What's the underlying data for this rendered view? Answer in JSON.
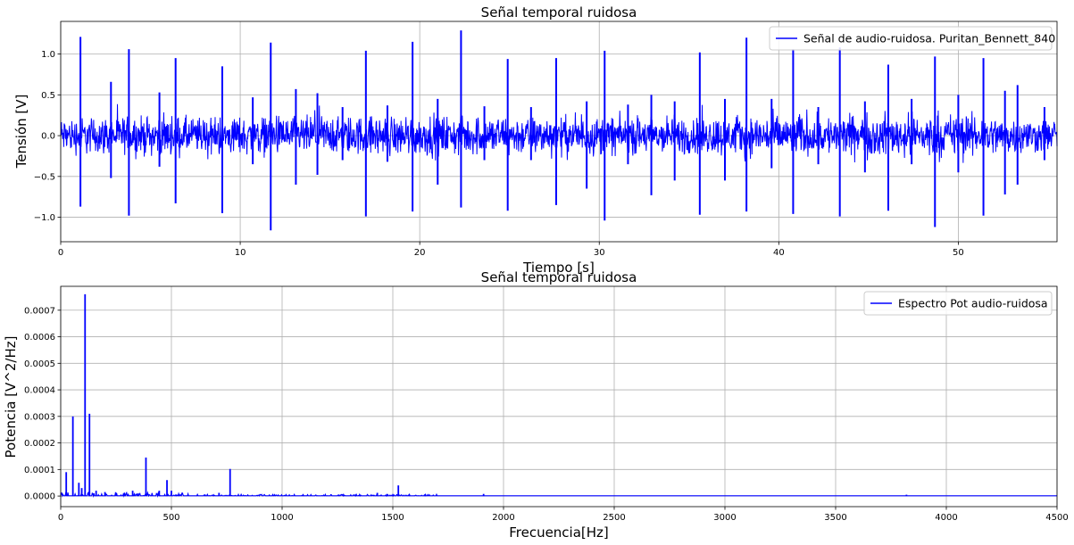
{
  "chart_data": [
    {
      "type": "line",
      "title": "Señal temporal ruidosa",
      "xlabel": "Tiempo [s]",
      "ylabel": "Tensión [V]",
      "xlim": [
        0,
        55.5
      ],
      "ylim": [
        -1.3,
        1.4
      ],
      "xticks": [
        0,
        10,
        20,
        30,
        40,
        50
      ],
      "xtick_labels": [
        "0",
        "10",
        "20",
        "30",
        "40",
        "50"
      ],
      "yticks": [
        -1.0,
        -0.5,
        0.0,
        0.5,
        1.0
      ],
      "ytick_labels": [
        "−1.0",
        "−0.5",
        "0.0",
        "0.5",
        "1.0"
      ],
      "grid": true,
      "legend_position": "top-right",
      "series": [
        {
          "name": "Señal de audio-ruidosa. Puritan_Bennett_840",
          "color": "#0000ff",
          "noise_envelope": {
            "x": [
              0,
              10,
              20,
              30,
              40,
              50,
              55.5
            ],
            "amplitude": [
              0.32,
              0.33,
              0.35,
              0.33,
              0.35,
              0.38,
              0.28
            ]
          },
          "spikes": [
            {
              "x": 1.1,
              "max": 1.21,
              "min": -0.87
            },
            {
              "x": 2.8,
              "max": 0.66,
              "min": -0.52
            },
            {
              "x": 3.8,
              "max": 1.06,
              "min": -0.98
            },
            {
              "x": 5.5,
              "max": 0.53,
              "min": -0.38
            },
            {
              "x": 6.4,
              "max": 0.95,
              "min": -0.83
            },
            {
              "x": 9.0,
              "max": 0.85,
              "min": -0.95
            },
            {
              "x": 10.7,
              "max": 0.47,
              "min": -0.35
            },
            {
              "x": 11.7,
              "max": 1.14,
              "min": -1.16
            },
            {
              "x": 13.1,
              "max": 0.57,
              "min": -0.6
            },
            {
              "x": 14.3,
              "max": 0.52,
              "min": -0.48
            },
            {
              "x": 15.7,
              "max": 0.35,
              "min": -0.3
            },
            {
              "x": 17.0,
              "max": 1.04,
              "min": -0.99
            },
            {
              "x": 18.2,
              "max": 0.37,
              "min": -0.32
            },
            {
              "x": 19.6,
              "max": 1.15,
              "min": -0.93
            },
            {
              "x": 21.0,
              "max": 0.45,
              "min": -0.6
            },
            {
              "x": 22.3,
              "max": 1.29,
              "min": -0.88
            },
            {
              "x": 23.6,
              "max": 0.36,
              "min": -0.3
            },
            {
              "x": 24.9,
              "max": 0.94,
              "min": -0.92
            },
            {
              "x": 26.2,
              "max": 0.35,
              "min": -0.3
            },
            {
              "x": 27.6,
              "max": 0.95,
              "min": -0.85
            },
            {
              "x": 29.3,
              "max": 0.42,
              "min": -0.65
            },
            {
              "x": 30.3,
              "max": 1.04,
              "min": -1.04
            },
            {
              "x": 31.6,
              "max": 0.38,
              "min": -0.35
            },
            {
              "x": 32.9,
              "max": 0.5,
              "min": -0.73
            },
            {
              "x": 34.2,
              "max": 0.42,
              "min": -0.55
            },
            {
              "x": 35.6,
              "max": 1.02,
              "min": -0.97
            },
            {
              "x": 37.0,
              "max": 0.45,
              "min": -0.55
            },
            {
              "x": 38.2,
              "max": 1.2,
              "min": -0.93
            },
            {
              "x": 39.6,
              "max": 0.45,
              "min": -0.4
            },
            {
              "x": 40.8,
              "max": 1.06,
              "min": -0.96
            },
            {
              "x": 42.2,
              "max": 0.35,
              "min": -0.35
            },
            {
              "x": 43.4,
              "max": 1.08,
              "min": -0.99
            },
            {
              "x": 44.8,
              "max": 0.42,
              "min": -0.45
            },
            {
              "x": 46.1,
              "max": 0.87,
              "min": -0.92
            },
            {
              "x": 47.4,
              "max": 0.45,
              "min": -0.35
            },
            {
              "x": 48.7,
              "max": 0.97,
              "min": -1.12
            },
            {
              "x": 50.0,
              "max": 0.5,
              "min": -0.45
            },
            {
              "x": 51.4,
              "max": 0.95,
              "min": -0.98
            },
            {
              "x": 52.6,
              "max": 0.55,
              "min": -0.72
            },
            {
              "x": 53.3,
              "max": 0.62,
              "min": -0.6
            },
            {
              "x": 54.8,
              "max": 0.35,
              "min": -0.3
            }
          ]
        }
      ]
    },
    {
      "type": "line",
      "title": "Señal temporal ruidosa",
      "xlabel": "Frecuencia[Hz]",
      "ylabel": "Potencia [V^2/Hz]",
      "xlim": [
        0,
        4500
      ],
      "ylim": [
        -4e-05,
        0.00079
      ],
      "xticks": [
        0,
        500,
        1000,
        1500,
        2000,
        2500,
        3000,
        3500,
        4000,
        4500
      ],
      "xtick_labels": [
        "0",
        "500",
        "1000",
        "1500",
        "2000",
        "2500",
        "3000",
        "3500",
        "4000",
        "4500"
      ],
      "yticks": [
        0,
        0.0001,
        0.0002,
        0.0003,
        0.0004,
        0.0005,
        0.0006,
        0.0007
      ],
      "ytick_labels": [
        "0.0000",
        "0.0001",
        "0.0002",
        "0.0003",
        "0.0004",
        "0.0005",
        "0.0006",
        "0.0007"
      ],
      "grid": true,
      "legend_position": "top-right",
      "series": [
        {
          "name": "Espectro Pot audio-ruidosa",
          "color": "#0000ff",
          "baseline": 1e-06,
          "peaks": [
            {
              "x": 25,
              "y": 9e-05
            },
            {
              "x": 55,
              "y": 0.0003
            },
            {
              "x": 82,
              "y": 5e-05
            },
            {
              "x": 95,
              "y": 3e-05
            },
            {
              "x": 110,
              "y": 0.00076
            },
            {
              "x": 130,
              "y": 0.00031
            },
            {
              "x": 160,
              "y": 2e-05
            },
            {
              "x": 200,
              "y": 1.5e-05
            },
            {
              "x": 250,
              "y": 1e-05
            },
            {
              "x": 325,
              "y": 2e-05
            },
            {
              "x": 385,
              "y": 0.000145
            },
            {
              "x": 445,
              "y": 2e-05
            },
            {
              "x": 480,
              "y": 6e-05
            },
            {
              "x": 500,
              "y": 2e-05
            },
            {
              "x": 715,
              "y": 1.2e-05
            },
            {
              "x": 765,
              "y": 0.000102
            },
            {
              "x": 1430,
              "y": 1.2e-05
            },
            {
              "x": 1525,
              "y": 4e-05
            },
            {
              "x": 1910,
              "y": 8e-06
            },
            {
              "x": 3820,
              "y": 5e-06
            }
          ]
        }
      ]
    }
  ]
}
